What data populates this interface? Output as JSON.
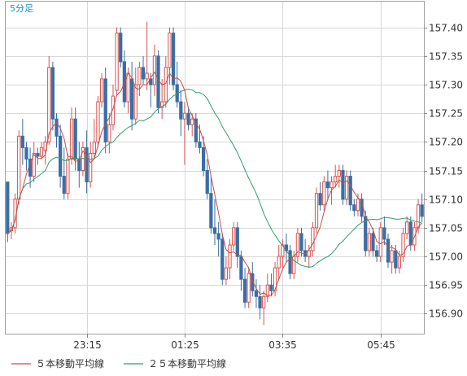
{
  "chart_data": {
    "type": "candlestick",
    "interval_label": "5分足",
    "x_tick_labels": [
      "23:15",
      "01:25",
      "03:35",
      "05:45"
    ],
    "y_tick_labels": [
      "157.40",
      "157.35",
      "157.30",
      "157.25",
      "157.20",
      "157.15",
      "157.10",
      "157.05",
      "157.00",
      "156.95",
      "156.90"
    ],
    "ylim": [
      156.865,
      157.445
    ],
    "grid": true,
    "legend_position": "bottom-left",
    "legend": [
      {
        "key": "ma5",
        "label": "５本移動平均線",
        "color": "#c0504d"
      },
      {
        "key": "ma25",
        "label": "２５本移動平均線",
        "color": "#2e9e6e"
      }
    ],
    "colors": {
      "up": "#d9534f",
      "down": "#3a6ea5",
      "grid": "#d8d8d8"
    },
    "candles": [
      [
        157.13,
        157.13,
        157.025,
        157.04
      ],
      [
        157.045,
        157.06,
        157.03,
        157.05
      ],
      [
        157.05,
        157.11,
        157.04,
        157.1
      ],
      [
        157.1,
        157.22,
        157.09,
        157.21
      ],
      [
        157.21,
        157.24,
        157.16,
        157.19
      ],
      [
        157.19,
        157.2,
        157.15,
        157.17
      ],
      [
        157.17,
        157.19,
        157.12,
        157.14
      ],
      [
        157.14,
        157.2,
        157.13,
        157.18
      ],
      [
        157.18,
        157.19,
        157.16,
        157.175
      ],
      [
        157.175,
        157.2,
        157.17,
        157.19
      ],
      [
        157.185,
        157.21,
        157.16,
        157.2
      ],
      [
        157.2,
        157.35,
        157.195,
        157.33
      ],
      [
        157.33,
        157.34,
        157.22,
        157.24
      ],
      [
        157.24,
        157.25,
        157.19,
        157.21
      ],
      [
        157.21,
        157.23,
        157.12,
        157.14
      ],
      [
        157.14,
        157.19,
        157.1,
        157.11
      ],
      [
        157.11,
        157.18,
        157.1,
        157.17
      ],
      [
        157.17,
        157.26,
        157.16,
        157.24
      ],
      [
        157.24,
        157.26,
        157.15,
        157.17
      ],
      [
        157.17,
        157.2,
        157.12,
        157.15
      ],
      [
        157.15,
        157.2,
        157.14,
        157.19
      ],
      [
        157.19,
        157.22,
        157.11,
        157.13
      ],
      [
        157.13,
        157.2,
        157.12,
        157.18
      ],
      [
        157.18,
        157.24,
        157.17,
        157.2
      ],
      [
        157.2,
        157.28,
        157.19,
        157.27
      ],
      [
        157.27,
        157.32,
        157.26,
        157.31
      ],
      [
        157.31,
        157.33,
        157.18,
        157.2
      ],
      [
        157.2,
        157.25,
        157.18,
        157.23
      ],
      [
        157.23,
        157.3,
        157.22,
        157.28
      ],
      [
        157.29,
        157.4,
        157.28,
        157.39
      ],
      [
        157.39,
        157.4,
        157.33,
        157.34
      ],
      [
        157.34,
        157.36,
        157.26,
        157.27
      ],
      [
        157.27,
        157.33,
        157.25,
        157.32
      ],
      [
        157.31,
        157.34,
        157.22,
        157.24
      ],
      [
        157.24,
        157.33,
        157.23,
        157.3
      ],
      [
        157.3,
        157.34,
        157.28,
        157.33
      ],
      [
        157.33,
        157.35,
        157.3,
        157.31
      ],
      [
        157.31,
        157.41,
        157.29,
        157.32
      ],
      [
        157.31,
        157.32,
        157.26,
        157.3
      ],
      [
        157.3,
        157.37,
        157.28,
        157.35
      ],
      [
        157.35,
        157.36,
        157.25,
        157.26
      ],
      [
        157.26,
        157.31,
        157.24,
        157.27
      ],
      [
        157.27,
        157.35,
        157.26,
        157.33
      ],
      [
        157.33,
        157.4,
        157.3,
        157.39
      ],
      [
        157.39,
        157.4,
        157.29,
        157.3
      ],
      [
        157.3,
        157.34,
        157.26,
        157.27
      ],
      [
        157.27,
        157.29,
        157.21,
        157.24
      ],
      [
        157.24,
        157.27,
        157.16,
        157.25
      ],
      [
        157.25,
        157.26,
        157.22,
        157.23
      ],
      [
        157.23,
        157.25,
        157.21,
        157.24
      ],
      [
        157.24,
        157.25,
        157.19,
        157.2
      ],
      [
        157.2,
        157.23,
        157.18,
        157.19
      ],
      [
        157.19,
        157.21,
        157.14,
        157.15
      ],
      [
        157.15,
        157.17,
        157.1,
        157.11
      ],
      [
        157.11,
        157.14,
        157.04,
        157.05
      ],
      [
        157.05,
        157.1,
        157.02,
        157.04
      ],
      [
        157.04,
        157.06,
        157.0,
        157.03
      ],
      [
        157.03,
        157.04,
        156.95,
        156.96
      ],
      [
        156.96,
        157.0,
        156.95,
        156.98
      ],
      [
        156.98,
        157.03,
        156.96,
        157.02
      ],
      [
        157.02,
        157.06,
        157.01,
        157.05
      ],
      [
        157.05,
        157.06,
        156.98,
        157.0
      ],
      [
        157.0,
        157.01,
        156.94,
        156.96
      ],
      [
        156.96,
        156.98,
        156.91,
        156.92
      ],
      [
        156.92,
        156.98,
        156.91,
        156.97
      ],
      [
        156.97,
        156.99,
        156.93,
        156.94
      ],
      [
        156.94,
        156.96,
        156.91,
        156.93
      ],
      [
        156.93,
        156.95,
        156.89,
        156.91
      ],
      [
        156.91,
        156.94,
        156.88,
        156.93
      ],
      [
        156.93,
        156.97,
        156.92,
        156.95
      ],
      [
        156.95,
        156.97,
        156.93,
        156.94
      ],
      [
        156.94,
        156.99,
        156.93,
        156.98
      ],
      [
        156.98,
        157.02,
        156.96,
        157.0
      ],
      [
        157.0,
        157.03,
        156.98,
        157.02
      ],
      [
        157.02,
        157.04,
        156.99,
        157.01
      ],
      [
        157.01,
        157.02,
        156.96,
        156.97
      ],
      [
        156.97,
        157.01,
        156.96,
        157.0
      ],
      [
        157.0,
        157.05,
        156.99,
        157.04
      ],
      [
        157.04,
        157.05,
        157.0,
        157.01
      ],
      [
        157.01,
        157.03,
        156.99,
        157.0
      ],
      [
        157.0,
        157.02,
        156.98,
        157.01
      ],
      [
        157.01,
        157.06,
        157.0,
        157.05
      ],
      [
        157.05,
        157.12,
        157.04,
        157.11
      ],
      [
        157.11,
        157.13,
        157.08,
        157.09
      ],
      [
        157.09,
        157.14,
        157.08,
        157.13
      ],
      [
        157.13,
        157.15,
        157.1,
        157.12
      ],
      [
        157.12,
        157.14,
        157.09,
        157.13
      ],
      [
        157.13,
        157.16,
        157.12,
        157.14
      ],
      [
        157.14,
        157.16,
        157.12,
        157.15
      ],
      [
        157.15,
        157.16,
        157.09,
        157.1
      ],
      [
        157.1,
        157.15,
        157.09,
        157.14
      ],
      [
        157.14,
        157.15,
        157.08,
        157.09
      ],
      [
        157.09,
        157.1,
        157.07,
        157.08
      ],
      [
        157.08,
        157.11,
        157.07,
        157.1
      ],
      [
        157.1,
        157.11,
        157.06,
        157.07
      ],
      [
        157.07,
        157.08,
        157.0,
        157.01
      ],
      [
        157.01,
        157.05,
        157.0,
        157.04
      ],
      [
        157.04,
        157.05,
        157.0,
        157.01
      ],
      [
        157.01,
        157.02,
        156.99,
        157.0
      ],
      [
        157.0,
        157.06,
        156.99,
        157.05
      ],
      [
        157.05,
        157.07,
        157.02,
        157.03
      ],
      [
        157.03,
        157.04,
        156.98,
        156.99
      ],
      [
        156.99,
        157.02,
        156.97,
        157.01
      ],
      [
        157.01,
        157.02,
        156.97,
        156.98
      ],
      [
        156.98,
        157.01,
        156.97,
        157.0
      ],
      [
        157.0,
        157.05,
        156.99,
        157.04
      ],
      [
        157.04,
        157.07,
        157.03,
        157.06
      ],
      [
        157.06,
        157.07,
        157.01,
        157.02
      ],
      [
        157.02,
        157.06,
        157.01,
        157.05
      ],
      [
        157.05,
        157.1,
        157.04,
        157.09
      ],
      [
        157.09,
        157.11,
        157.06,
        157.07
      ]
    ]
  }
}
